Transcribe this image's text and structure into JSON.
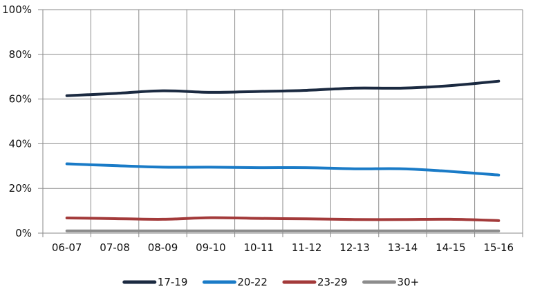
{
  "chart_data": {
    "type": "line",
    "title": "",
    "xlabel": "",
    "ylabel": "",
    "categories": [
      "06-07",
      "07-08",
      "08-09",
      "09-10",
      "10-11",
      "11-12",
      "12-13",
      "13-14",
      "14-15",
      "15-16"
    ],
    "ylim": [
      0,
      100
    ],
    "yticks": [
      0,
      20,
      40,
      60,
      80,
      100
    ],
    "ytick_labels": [
      "0%",
      "20%",
      "40%",
      "60%",
      "80%",
      "100%"
    ],
    "grid": true,
    "legend_position": "bottom",
    "series": [
      {
        "name": "17-19",
        "color": "#1b2a41",
        "values": [
          61.5,
          62.5,
          63.7,
          63.0,
          63.4,
          63.9,
          64.9,
          64.9,
          66.0,
          68.0
        ]
      },
      {
        "name": "20-22",
        "color": "#1a7bc7",
        "values": [
          31.0,
          30.2,
          29.5,
          29.5,
          29.3,
          29.3,
          28.8,
          28.8,
          27.6,
          26.0
        ]
      },
      {
        "name": "23-29",
        "color": "#a33a3a",
        "values": [
          6.8,
          6.5,
          6.2,
          6.9,
          6.6,
          6.4,
          6.1,
          6.1,
          6.2,
          5.6
        ]
      },
      {
        "name": "30+",
        "color": "#8c8c8c",
        "values": [
          1.0,
          1.0,
          1.0,
          1.0,
          1.0,
          1.0,
          1.0,
          1.0,
          1.0,
          1.0
        ]
      }
    ]
  }
}
